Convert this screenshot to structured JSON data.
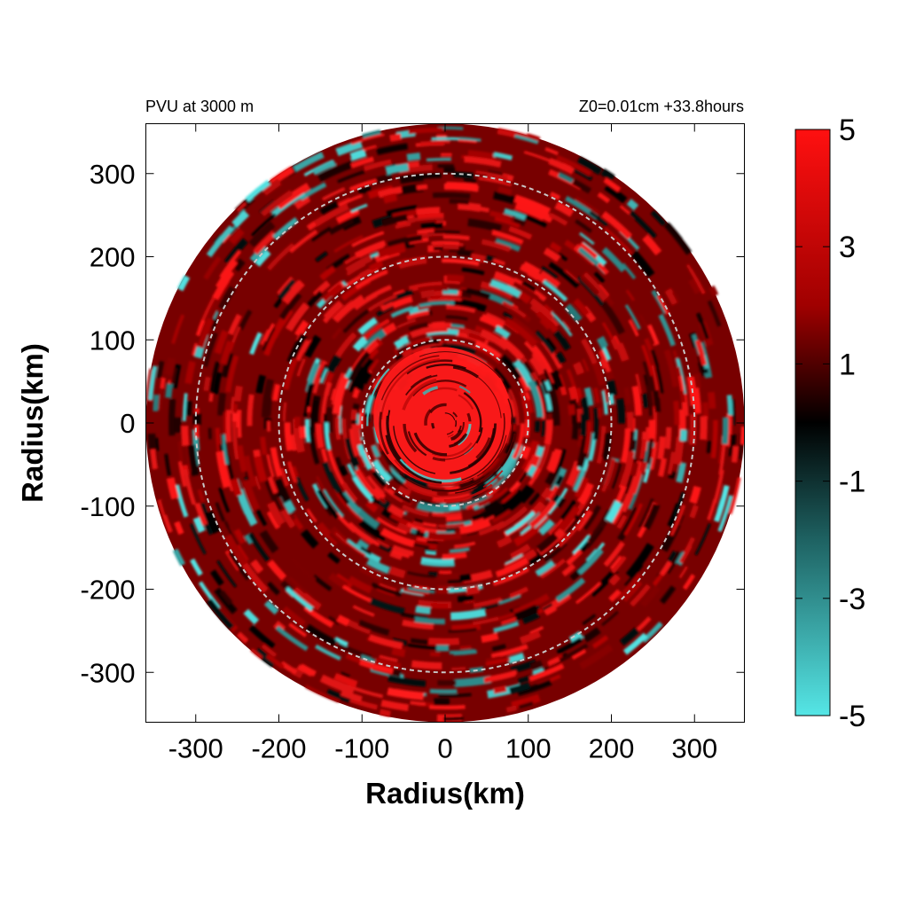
{
  "chart_data": {
    "type": "heatmap",
    "title_left": "PVU at  3000 m",
    "title_right": "Z0=0.01cm  +33.8hours",
    "xlabel": "Radius(km)",
    "ylabel": "Radius(km)",
    "xlim": [
      -360,
      360
    ],
    "ylim": [
      -360,
      360
    ],
    "domain_radius_km": 360,
    "x_ticks": [
      -300,
      -200,
      -100,
      0,
      100,
      200,
      300
    ],
    "y_ticks": [
      300,
      200,
      100,
      0,
      -100,
      -200,
      -300
    ],
    "x_tick_labels": [
      "-300",
      "-200",
      "-100",
      "0",
      "100",
      "200",
      "300"
    ],
    "y_tick_labels": [
      "300",
      "200",
      "100",
      "0",
      "-100",
      "-200",
      "-300"
    ],
    "reference_circles_km": [
      100,
      200,
      300
    ],
    "colorbar": {
      "range": [
        -5,
        5
      ],
      "ticks": [
        5,
        3,
        1,
        -1,
        -3,
        -5
      ],
      "tick_labels": [
        "5",
        "3",
        "1",
        "-1",
        "-3",
        "-5"
      ],
      "colors": {
        "high": "#ff1a1a",
        "mid_high": "#a00000",
        "zero": "#000000",
        "mid_low": "#1e6262",
        "low": "#55e6e6"
      }
    },
    "field_description_values": {
      "core_radius_km": 90,
      "core_value": 5,
      "background_value": 1.5,
      "negative_anomaly_min": -4
    }
  }
}
